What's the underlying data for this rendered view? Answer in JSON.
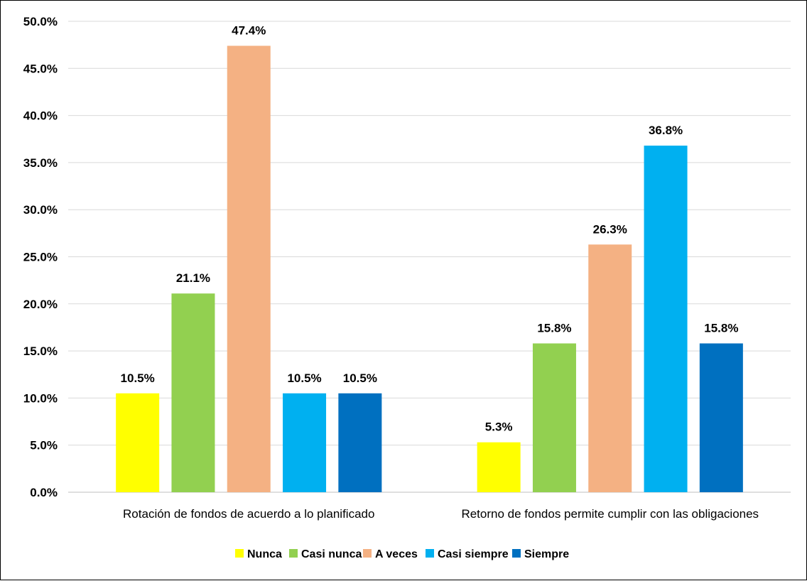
{
  "chart_data": {
    "type": "bar",
    "categories": [
      "Rotación de fondos de acuerdo a lo planificado",
      "Retorno de fondos permite cumplir con las obligaciones"
    ],
    "series": [
      {
        "name": "Nunca",
        "color": "#ffff00",
        "values": [
          10.5,
          5.3
        ],
        "labels": [
          "10.5%",
          "5.3%"
        ]
      },
      {
        "name": "Casi nunca",
        "color": "#92d050",
        "values": [
          21.1,
          15.8
        ],
        "labels": [
          "21.1%",
          "15.8%"
        ]
      },
      {
        "name": "A veces",
        "color": "#f4b183",
        "values": [
          47.4,
          26.3
        ],
        "labels": [
          "47.4%",
          "26.3%"
        ]
      },
      {
        "name": "Casi siempre",
        "color": "#00b0f0",
        "values": [
          10.5,
          36.8
        ],
        "labels": [
          "10.5%",
          "36.8%"
        ]
      },
      {
        "name": "Siempre",
        "color": "#0070c0",
        "values": [
          10.5,
          15.8
        ],
        "labels": [
          "10.5%",
          "15.8%"
        ]
      }
    ],
    "yticks": [
      0,
      5,
      10,
      15,
      20,
      25,
      30,
      35,
      40,
      45,
      50
    ],
    "ytick_labels": [
      "0.0%",
      "5.0%",
      "10.0%",
      "15.0%",
      "20.0%",
      "25.0%",
      "30.0%",
      "35.0%",
      "40.0%",
      "45.0%",
      "50.0%"
    ],
    "ylim": [
      0,
      50
    ],
    "grid": true,
    "legend_position": "bottom"
  }
}
